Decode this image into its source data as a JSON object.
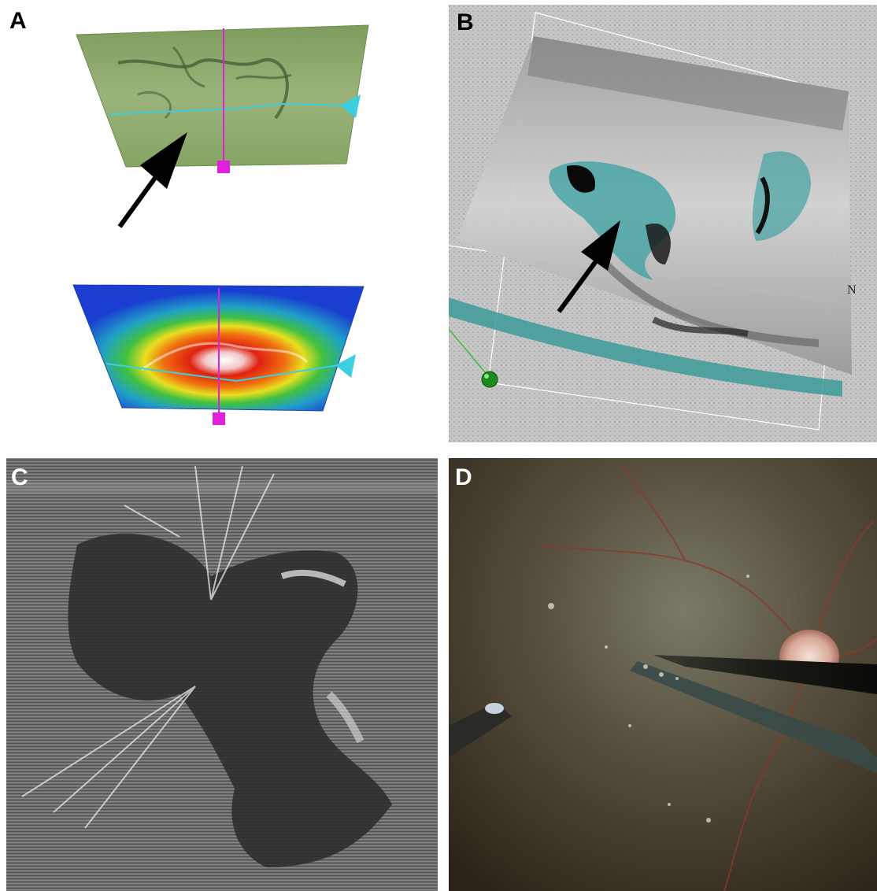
{
  "panels": [
    {
      "id": "A",
      "label": "A"
    },
    {
      "id": "B",
      "label": "B",
      "compass_label": "N"
    },
    {
      "id": "C",
      "label": "C"
    },
    {
      "id": "D",
      "label": "D"
    }
  ],
  "colors": {
    "surface_green": "#8faa6c",
    "marker_magenta": "#e020d8",
    "marker_cyan": "#3ccfe0",
    "heatmap_high": "#e02010",
    "heatmap_low": "#1a3fd0",
    "arrow": "#000000",
    "fluid_teal": "#3aa0a0"
  },
  "icons": [
    "arrow-pointer-icon",
    "cyan-triangle-marker-icon",
    "magenta-square-marker-icon",
    "green-sphere-icon"
  ]
}
